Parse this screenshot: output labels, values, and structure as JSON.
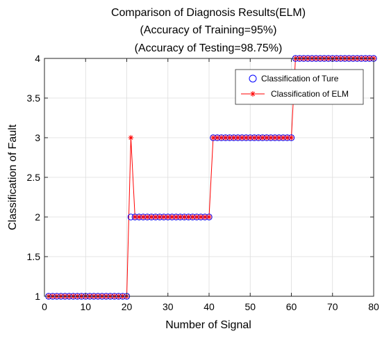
{
  "chart_data": {
    "type": "line",
    "title": [
      "Comparison of Diagnosis Results(ELM)",
      "(Accuracy of Training=95%)",
      "(Accuracy of Testing=98.75%)"
    ],
    "xlabel": "Number of Signal",
    "ylabel": "Classification of Fault",
    "xlim": [
      0,
      80
    ],
    "ylim": [
      1,
      4
    ],
    "xticks": [
      0,
      10,
      20,
      30,
      40,
      50,
      60,
      70,
      80
    ],
    "yticks": [
      1,
      1.5,
      2,
      2.5,
      3,
      3.5,
      4
    ],
    "xtick_labels": [
      "0",
      "10",
      "20",
      "30",
      "40",
      "50",
      "60",
      "70",
      "80"
    ],
    "ytick_labels": [
      "1",
      "1.5",
      "2",
      "2.5",
      "3",
      "3.5",
      "4"
    ],
    "grid": true,
    "legend_position": "top-right",
    "x": [
      1,
      2,
      3,
      4,
      5,
      6,
      7,
      8,
      9,
      10,
      11,
      12,
      13,
      14,
      15,
      16,
      17,
      18,
      19,
      20,
      21,
      22,
      23,
      24,
      25,
      26,
      27,
      28,
      29,
      30,
      31,
      32,
      33,
      34,
      35,
      36,
      37,
      38,
      39,
      40,
      41,
      42,
      43,
      44,
      45,
      46,
      47,
      48,
      49,
      50,
      51,
      52,
      53,
      54,
      55,
      56,
      57,
      58,
      59,
      60,
      61,
      62,
      63,
      64,
      65,
      66,
      67,
      68,
      69,
      70,
      71,
      72,
      73,
      74,
      75,
      76,
      77,
      78,
      79,
      80
    ],
    "series": [
      {
        "name": "Classification of Ture",
        "marker": "circle",
        "color": "#0000ff",
        "values": [
          1,
          1,
          1,
          1,
          1,
          1,
          1,
          1,
          1,
          1,
          1,
          1,
          1,
          1,
          1,
          1,
          1,
          1,
          1,
          1,
          2,
          2,
          2,
          2,
          2,
          2,
          2,
          2,
          2,
          2,
          2,
          2,
          2,
          2,
          2,
          2,
          2,
          2,
          2,
          2,
          3,
          3,
          3,
          3,
          3,
          3,
          3,
          3,
          3,
          3,
          3,
          3,
          3,
          3,
          3,
          3,
          3,
          3,
          3,
          3,
          4,
          4,
          4,
          4,
          4,
          4,
          4,
          4,
          4,
          4,
          4,
          4,
          4,
          4,
          4,
          4,
          4,
          4,
          4,
          4
        ]
      },
      {
        "name": "Classification of ELM",
        "marker": "asterisk",
        "color": "#ff0000",
        "values": [
          1,
          1,
          1,
          1,
          1,
          1,
          1,
          1,
          1,
          1,
          1,
          1,
          1,
          1,
          1,
          1,
          1,
          1,
          1,
          1,
          3,
          2,
          2,
          2,
          2,
          2,
          2,
          2,
          2,
          2,
          2,
          2,
          2,
          2,
          2,
          2,
          2,
          2,
          2,
          2,
          3,
          3,
          3,
          3,
          3,
          3,
          3,
          3,
          3,
          3,
          3,
          3,
          3,
          3,
          3,
          3,
          3,
          3,
          3,
          3,
          4,
          4,
          4,
          4,
          4,
          4,
          4,
          4,
          4,
          4,
          4,
          4,
          4,
          4,
          4,
          4,
          4,
          4,
          4,
          4
        ]
      }
    ]
  }
}
